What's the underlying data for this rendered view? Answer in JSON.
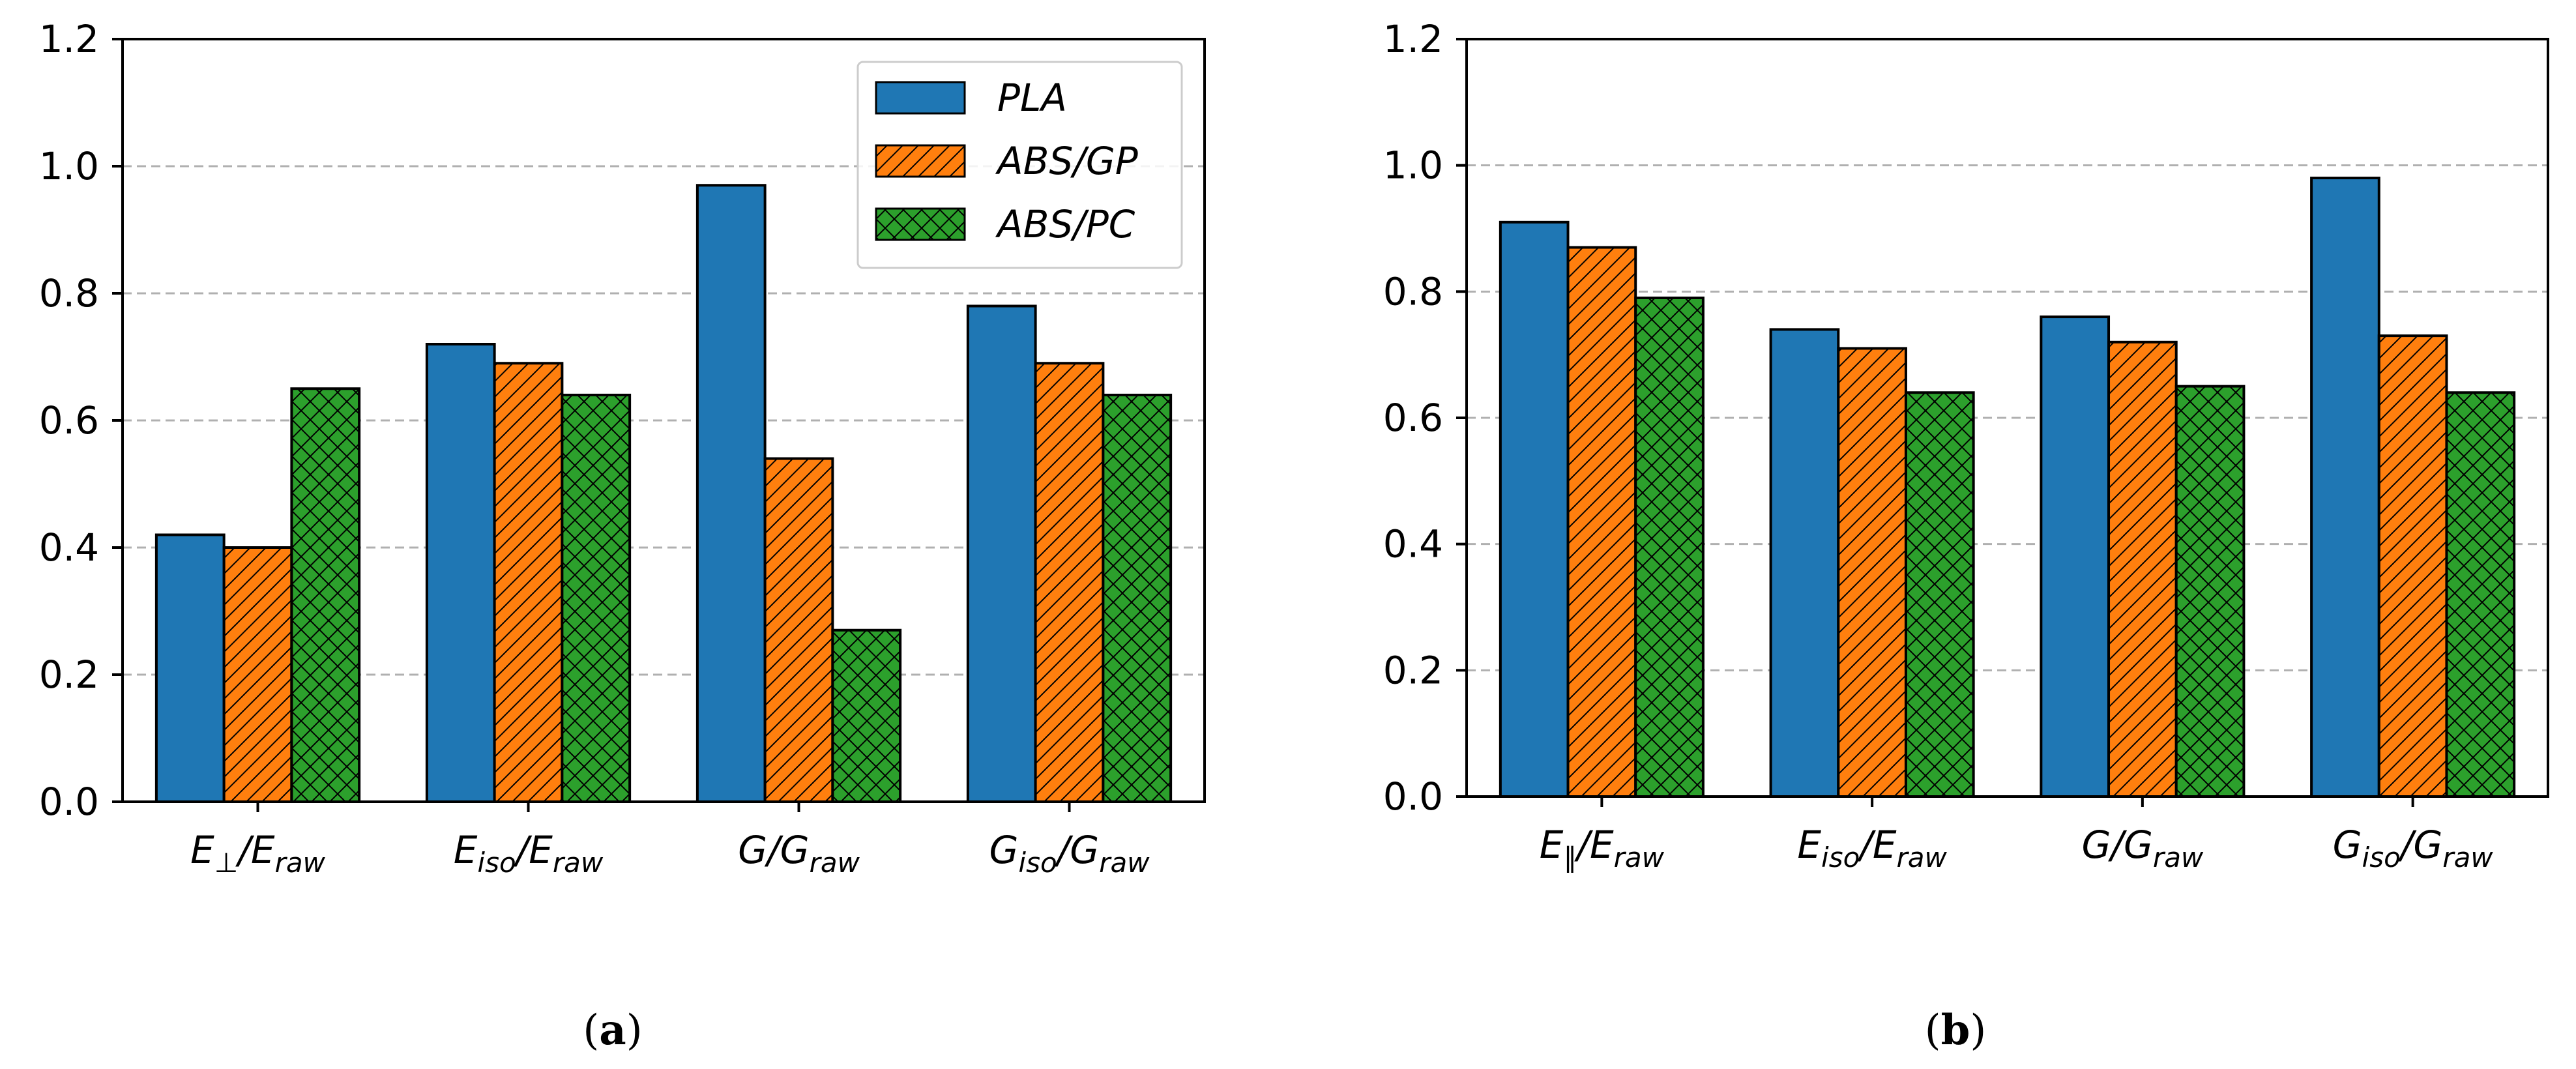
{
  "panels": {
    "a": {
      "label_open": "(",
      "label_letter": "a",
      "label_close": ")"
    },
    "b": {
      "label_open": "(",
      "label_letter": "b",
      "label_close": ")"
    }
  },
  "legend": {
    "items": [
      {
        "label": "PLA"
      },
      {
        "label": "ABS/GP"
      },
      {
        "label": "ABS/PC"
      }
    ]
  },
  "colors": {
    "PLA": "#1f77b4",
    "ABS/GP": "#ff7f0e",
    "ABS/PC": "#2ca02c",
    "grid": "#b0b0b0",
    "edge": "#000000"
  },
  "patterns": {
    "PLA": "solid",
    "ABS/GP": "diagonal-hatch",
    "ABS/PC": "cross-hatch"
  },
  "chart_data": [
    {
      "type": "bar",
      "panel": "a",
      "categories": [
        "E⊥/Eraw",
        "Eiso/Eraw",
        "G/Graw",
        "Giso/Graw"
      ],
      "category_parts": [
        {
          "base": "E",
          "sub": "⊥",
          "sep": "/",
          "base2": "E",
          "sub2": "raw"
        },
        {
          "base": "E",
          "sub": "iso",
          "sep": "/",
          "base2": "E",
          "sub2": "raw"
        },
        {
          "base": "G",
          "sub": "",
          "sep": "/",
          "base2": "G",
          "sub2": "raw"
        },
        {
          "base": "G",
          "sub": "iso",
          "sep": "/",
          "base2": "G",
          "sub2": "raw"
        }
      ],
      "series": [
        {
          "name": "PLA",
          "values": [
            0.42,
            0.72,
            0.97,
            0.78
          ]
        },
        {
          "name": "ABS/GP",
          "values": [
            0.4,
            0.69,
            0.54,
            0.69
          ]
        },
        {
          "name": "ABS/PC",
          "values": [
            0.65,
            0.64,
            0.27,
            0.64
          ]
        }
      ],
      "ylim": [
        0,
        1.2
      ],
      "yticks": [
        "0.0",
        "0.2",
        "0.4",
        "0.6",
        "0.8",
        "1.0",
        "1.2"
      ],
      "grid": "horizontal dashed",
      "legend": "top-right",
      "xlabel": "",
      "ylabel": ""
    },
    {
      "type": "bar",
      "panel": "b",
      "categories": [
        "E∥/Eraw",
        "Eiso/Eraw",
        "G/Graw",
        "Giso/Graw"
      ],
      "category_parts": [
        {
          "base": "E",
          "sub": "∥",
          "sep": "/",
          "base2": "E",
          "sub2": "raw"
        },
        {
          "base": "E",
          "sub": "iso",
          "sep": "/",
          "base2": "E",
          "sub2": "raw"
        },
        {
          "base": "G",
          "sub": "",
          "sep": "/",
          "base2": "G",
          "sub2": "raw"
        },
        {
          "base": "G",
          "sub": "iso",
          "sep": "/",
          "base2": "G",
          "sub2": "raw"
        }
      ],
      "series": [
        {
          "name": "PLA",
          "values": [
            0.91,
            0.74,
            0.76,
            0.98
          ]
        },
        {
          "name": "ABS/GP",
          "values": [
            0.87,
            0.71,
            0.72,
            0.73
          ]
        },
        {
          "name": "ABS/PC",
          "values": [
            0.79,
            0.64,
            0.65,
            0.64
          ]
        }
      ],
      "ylim": [
        0,
        1.2
      ],
      "yticks": [
        "0.0",
        "0.2",
        "0.4",
        "0.6",
        "0.8",
        "1.0",
        "1.2"
      ],
      "grid": "horizontal dashed",
      "legend": "none",
      "xlabel": "",
      "ylabel": ""
    }
  ]
}
